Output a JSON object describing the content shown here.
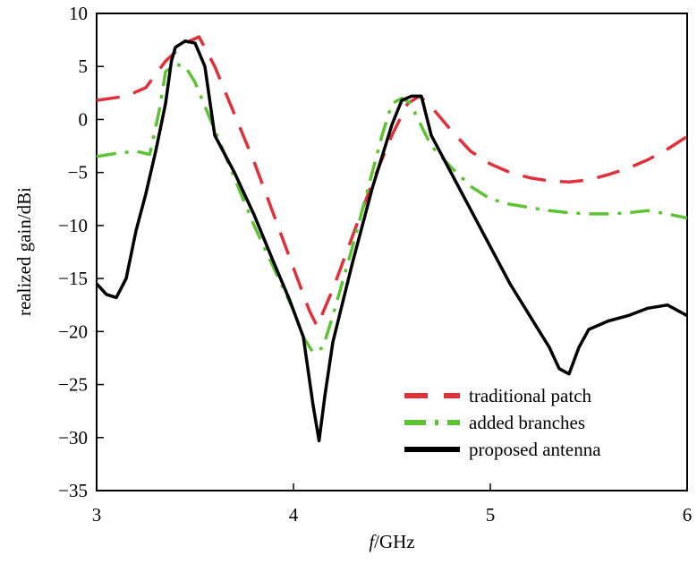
{
  "chart_data": {
    "type": "line",
    "title": "",
    "xlabel_italic": "f",
    "xlabel_rest": "/GHz",
    "ylabel": "realized gain/dBi",
    "xlim": [
      3,
      6
    ],
    "ylim": [
      -35,
      10
    ],
    "xticks": [
      "3",
      "4",
      "5",
      "6"
    ],
    "yticks": [
      "10",
      "5",
      "0",
      "−5",
      "−10",
      "−15",
      "−20",
      "−25",
      "−30",
      "−35"
    ],
    "legend_position": "bottom-right",
    "grid": false,
    "series": [
      {
        "name": "traditional patch",
        "color": "#e0313a",
        "style": "dashed",
        "x": [
          3.0,
          3.15,
          3.25,
          3.35,
          3.45,
          3.52,
          3.6,
          3.7,
          3.8,
          3.9,
          4.0,
          4.08,
          4.12,
          4.2,
          4.3,
          4.4,
          4.5,
          4.58,
          4.64,
          4.7,
          4.8,
          4.9,
          5.0,
          5.1,
          5.2,
          5.3,
          5.4,
          5.5,
          5.6,
          5.7,
          5.8,
          5.9,
          6.0
        ],
        "values": [
          1.8,
          2.2,
          3.0,
          5.5,
          7.2,
          7.8,
          5.0,
          0.5,
          -4.0,
          -9.0,
          -14.0,
          -18.0,
          -19.5,
          -16.0,
          -11.0,
          -6.0,
          -1.5,
          1.5,
          2.2,
          1.2,
          -1.0,
          -3.0,
          -4.2,
          -5.0,
          -5.5,
          -5.8,
          -5.9,
          -5.7,
          -5.2,
          -4.6,
          -3.8,
          -2.8,
          -1.6
        ]
      },
      {
        "name": "added branches",
        "color": "#5ec333",
        "style": "dashdot",
        "x": [
          3.0,
          3.1,
          3.2,
          3.27,
          3.32,
          3.35,
          3.4,
          3.45,
          3.5,
          3.6,
          3.7,
          3.8,
          3.9,
          4.0,
          4.05,
          4.1,
          4.15,
          4.2,
          4.3,
          4.4,
          4.45,
          4.5,
          4.55,
          4.6,
          4.62,
          4.7,
          4.8,
          4.9,
          5.0,
          5.1,
          5.2,
          5.3,
          5.4,
          5.5,
          5.6,
          5.7,
          5.8,
          5.9,
          6.0
        ],
        "values": [
          -3.5,
          -3.2,
          -3.0,
          -3.3,
          1.0,
          4.5,
          5.2,
          5.0,
          3.5,
          -1.0,
          -5.5,
          -10.0,
          -14.0,
          -18.0,
          -20.5,
          -22.0,
          -21.5,
          -18.5,
          -12.0,
          -5.0,
          -1.5,
          1.5,
          2.0,
          1.5,
          0.5,
          -2.5,
          -4.5,
          -6.3,
          -7.5,
          -8.0,
          -8.3,
          -8.6,
          -8.8,
          -8.9,
          -8.9,
          -8.8,
          -8.6,
          -8.9,
          -9.3
        ]
      },
      {
        "name": "proposed antenna",
        "color": "#000000",
        "style": "solid",
        "x": [
          3.0,
          3.05,
          3.1,
          3.15,
          3.2,
          3.25,
          3.3,
          3.35,
          3.38,
          3.4,
          3.45,
          3.5,
          3.55,
          3.6,
          3.7,
          3.8,
          3.9,
          3.98,
          4.05,
          4.1,
          4.13,
          4.16,
          4.2,
          4.3,
          4.4,
          4.5,
          4.55,
          4.6,
          4.65,
          4.7,
          4.8,
          4.9,
          5.0,
          5.1,
          5.2,
          5.3,
          5.35,
          5.4,
          5.45,
          5.5,
          5.6,
          5.7,
          5.8,
          5.9,
          6.0
        ],
        "values": [
          -15.5,
          -16.5,
          -16.8,
          -15.0,
          -10.5,
          -7.0,
          -3.0,
          1.5,
          5.5,
          6.8,
          7.4,
          7.2,
          5.0,
          -1.5,
          -5.0,
          -9.0,
          -13.5,
          -17.0,
          -20.5,
          -27.0,
          -30.3,
          -26.0,
          -21.0,
          -13.5,
          -6.5,
          -0.5,
          1.8,
          2.2,
          2.2,
          -1.5,
          -5.0,
          -8.5,
          -12.0,
          -15.5,
          -18.5,
          -21.5,
          -23.5,
          -24.0,
          -21.5,
          -19.8,
          -19.0,
          -18.5,
          -17.8,
          -17.5,
          -18.5
        ]
      }
    ]
  }
}
